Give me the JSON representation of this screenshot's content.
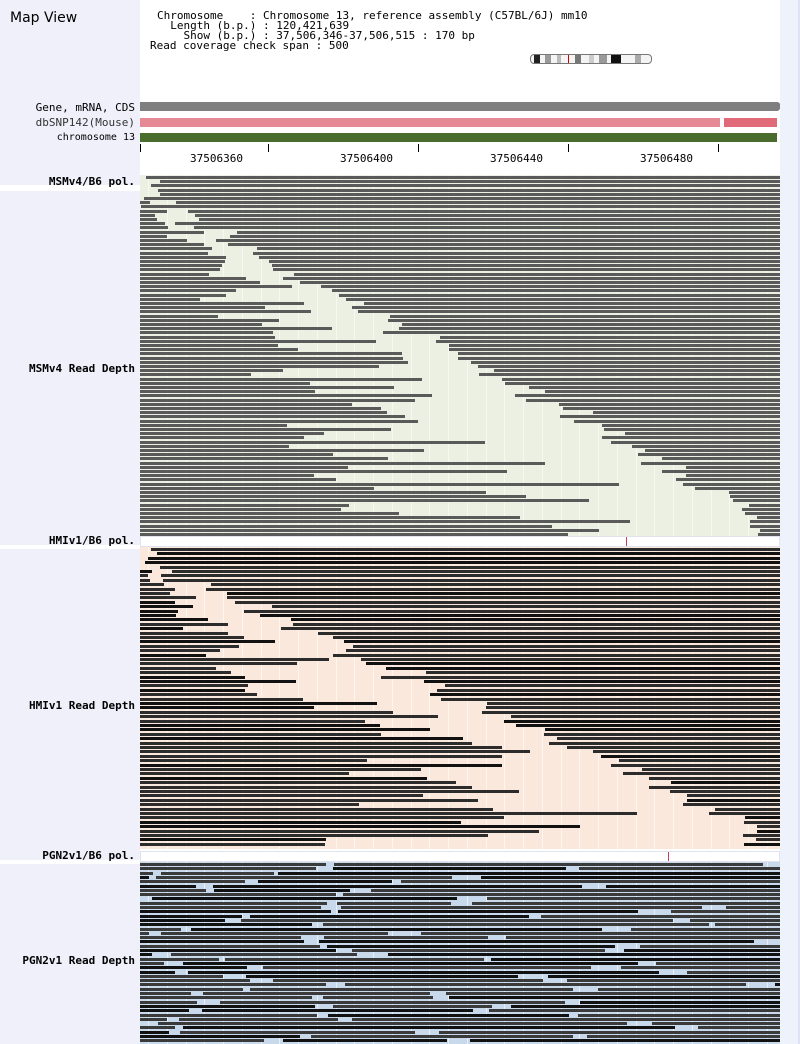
{
  "app_title": "Map View",
  "info": {
    "chromosome_label": "Chromosome",
    "chromosome_value": "Chromosome 13, reference assembly (C57BL/6J) mm10",
    "length_label": "Length (b.p.)",
    "length_value": "120,421,639",
    "show_label": "Show (b.p.)",
    "show_value": "37,506,346-37,506,515 : 170 bp",
    "coverage_label": "Read coverage check span",
    "coverage_value": "500"
  },
  "tracks": {
    "gene": "Gene, mRNA, CDS",
    "snp": "dbSNP142(Mouse)",
    "chrom": "chromosome 13"
  },
  "ruler": {
    "labels": [
      "37506360",
      "37506400",
      "37506440",
      "37506480"
    ]
  },
  "sections": [
    {
      "pol_label": "MSMv4/B6 pol.",
      "depth_label": "MSMv4 Read Depth",
      "bg": "#ebf0e3",
      "bar": "#5a5a5a"
    },
    {
      "pol_label": "HMIv1/B6 pol.",
      "depth_label": "HMIv1 Read Depth",
      "bg": "#fbe8dc",
      "bar": "#2c2c2c"
    },
    {
      "pol_label": "PGN2v1/B6 pol.",
      "depth_label": "PGN2v1 Read Depth",
      "bg": "#c9d9ec",
      "bar": "#3a3a3a"
    }
  ],
  "colors": {
    "gene_track": "#7f7f7f",
    "snp_track": "#e58a95",
    "chrom_track": "#4a6c2c",
    "snp_marker": "#c04060"
  }
}
